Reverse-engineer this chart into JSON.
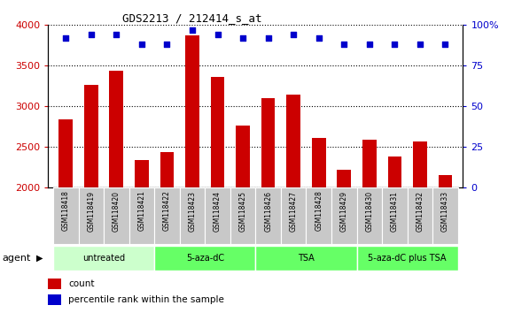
{
  "title": "GDS2213 / 212414_s_at",
  "samples": [
    "GSM118418",
    "GSM118419",
    "GSM118420",
    "GSM118421",
    "GSM118422",
    "GSM118423",
    "GSM118424",
    "GSM118425",
    "GSM118426",
    "GSM118427",
    "GSM118428",
    "GSM118429",
    "GSM118430",
    "GSM118431",
    "GSM118432",
    "GSM118433"
  ],
  "counts": [
    2840,
    3270,
    3440,
    2340,
    2440,
    3870,
    3360,
    2760,
    3100,
    3140,
    2610,
    2220,
    2590,
    2390,
    2570,
    2160
  ],
  "percentile_ranks": [
    92,
    94,
    94,
    88,
    88,
    97,
    94,
    92,
    92,
    94,
    92,
    88,
    88,
    88,
    88,
    88
  ],
  "bar_color": "#cc0000",
  "dot_color": "#0000cc",
  "ylim_left": [
    2000,
    4000
  ],
  "ylim_right": [
    0,
    100
  ],
  "yticks_left": [
    2000,
    2500,
    3000,
    3500,
    4000
  ],
  "yticks_right": [
    0,
    25,
    50,
    75,
    100
  ],
  "group_spans": [
    {
      "label": "untreated",
      "start": 0,
      "end": 3,
      "color": "#ccffcc"
    },
    {
      "label": "5-aza-dC",
      "start": 4,
      "end": 7,
      "color": "#66ff66"
    },
    {
      "label": "TSA",
      "start": 8,
      "end": 11,
      "color": "#66ff66"
    },
    {
      "label": "5-aza-dC plus TSA",
      "start": 12,
      "end": 15,
      "color": "#66ff66"
    }
  ],
  "agent_label": "agent",
  "legend_count_label": "count",
  "legend_pct_label": "percentile rank within the sample",
  "tick_label_color": "#cc0000",
  "right_axis_color": "#0000cc",
  "xtick_bg_color": "#c8c8c8",
  "bar_bottom": 2000
}
